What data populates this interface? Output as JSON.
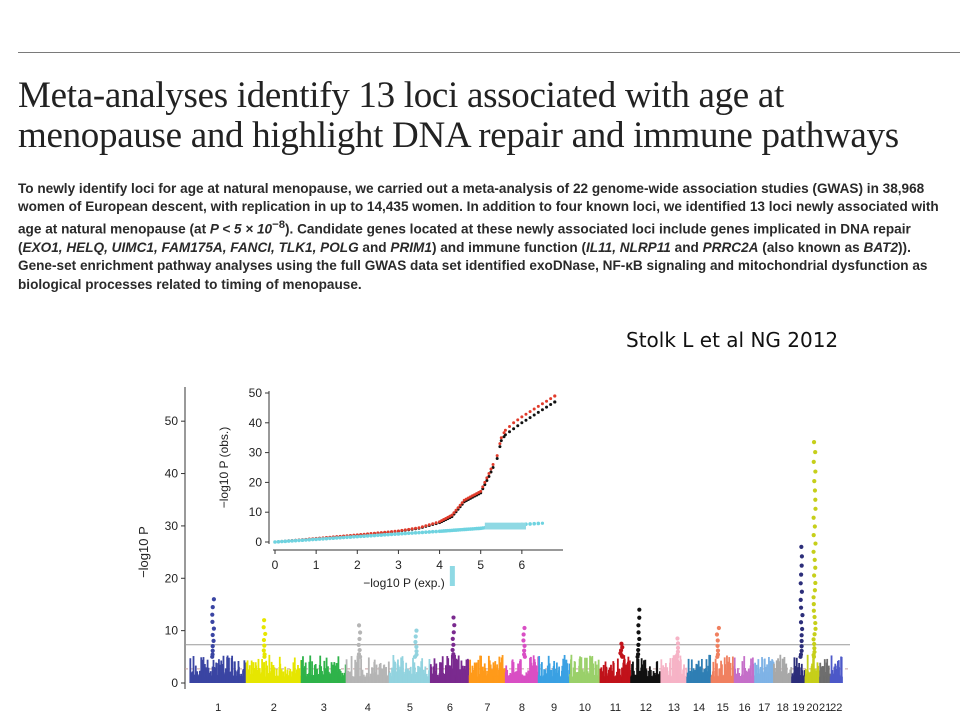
{
  "title": {
    "line1": "Meta-analyses identify 13 loci associated with age at",
    "line2": "menopause and highlight DNA repair and immune pathways"
  },
  "abstract": {
    "s1": "To newly identify loci for age at natural menopause, we carried out a meta-analysis of 22 genome-wide association studies (GWAS) in 38,968 women of European descent, with replication in up to 14,435 women. In addition to four known loci, we identified 13 loci newly associated with age at natural menopause (at ",
    "pthresh": "P < 5 × 10",
    "pexp": "−8",
    "s2": "). Candidate genes located at these newly associated loci include genes implicated in DNA repair (",
    "dna_genes": "EXO1, HELQ, UIMC1, FAM175A, FANCI, TLK1, POLG",
    "and1": " and ",
    "dna_gene_last": "PRIM1",
    "s3": ") and immune function (",
    "immune_genes": "IL11, NLRP11",
    "and2": " and ",
    "immune_gene_last": "PRRC2A",
    "s4": " (also known as ",
    "alias": "BAT2",
    "s5": ")). Gene-set enrichment pathway analyses using the full GWAS data set identified exoDNase, NF-κB signaling and mitochondrial dysfunction as biological processes related to timing of menopause."
  },
  "citation": "Stolk L et al NG 2012",
  "chart_data": [
    {
      "type": "scatter",
      "subtype": "manhattan",
      "ylabel": "−log10 P",
      "ylim": [
        0,
        55
      ],
      "yticks": [
        0,
        10,
        20,
        30,
        40,
        50
      ],
      "threshold_genomewide": 7.3,
      "threshold_suggestive": 2.7,
      "categories": [
        "1",
        "2",
        "3",
        "4",
        "5",
        "6",
        "7",
        "8",
        "9",
        "10",
        "11",
        "12",
        "13",
        "14",
        "15",
        "16",
        "17",
        "18",
        "19",
        "20",
        "21",
        "22"
      ],
      "chromosome_colors": [
        "#3a45a3",
        "#e6e600",
        "#2fb34a",
        "#b5b5b5",
        "#92d3df",
        "#7a2a8f",
        "#ff9a1a",
        "#d94fc4",
        "#3aa1e3",
        "#9ad06a",
        "#c1121a",
        "#111111",
        "#f6b3c6",
        "#2f7fb4",
        "#f08060",
        "#c56fc9",
        "#7fb3e6",
        "#a8a8a8",
        "#2c2e7a",
        "#c6cf1a",
        "#6e6e6e",
        "#4d59c9"
      ],
      "peaks": [
        {
          "chromosome": "1",
          "max": 16
        },
        {
          "chromosome": "2",
          "max": 12
        },
        {
          "chromosome": "4",
          "max": 11
        },
        {
          "chromosome": "5",
          "max": 10
        },
        {
          "chromosome": "6",
          "max": 12.5
        },
        {
          "chromosome": "8",
          "max": 10.5
        },
        {
          "chromosome": "11",
          "max": 7.5
        },
        {
          "chromosome": "12",
          "max": 14
        },
        {
          "chromosome": "13",
          "max": 8.5
        },
        {
          "chromosome": "15",
          "max": 10.5
        },
        {
          "chromosome": "19",
          "max": 26
        },
        {
          "chromosome": "20",
          "max": 46
        }
      ]
    },
    {
      "type": "scatter",
      "subtype": "qq",
      "xlabel": "−log10 P (exp.)",
      "ylabel": "−log10 P (obs.)",
      "xlim": [
        0,
        7
      ],
      "ylim": [
        0,
        50
      ],
      "xticks": [
        0,
        1,
        2,
        3,
        4,
        5,
        6
      ],
      "yticks": [
        0,
        10,
        20,
        30,
        40,
        50
      ],
      "series": [
        {
          "color": "#111111",
          "x": [
            0,
            1,
            2,
            3,
            3.5,
            4,
            4.3,
            4.6,
            4.8,
            5,
            5.2,
            5.4,
            5.5,
            5.6,
            5.8,
            6,
            6.8
          ],
          "y": [
            0,
            1.1,
            2.3,
            3.6,
            4.6,
            6.5,
            8.5,
            13.5,
            15,
            16.5,
            22,
            28,
            34,
            36,
            38,
            40,
            47
          ]
        },
        {
          "color": "#e03b2b",
          "x": [
            0,
            1,
            2,
            3,
            3.5,
            4,
            4.3,
            4.6,
            4.8,
            5,
            5.2,
            5.4,
            5.5,
            5.6,
            5.8,
            6,
            6.8
          ],
          "y": [
            0,
            1.2,
            2.4,
            3.7,
            4.8,
            6.8,
            9,
            14,
            15.5,
            17,
            23,
            29,
            35,
            37.5,
            40,
            42,
            49
          ]
        },
        {
          "color": "#6fd3e0",
          "x": [
            0,
            1,
            2,
            3,
            4,
            5,
            5.5,
            6.5
          ],
          "y": [
            0,
            0.9,
            1.8,
            2.7,
            3.6,
            4.6,
            5.5,
            6.3
          ]
        }
      ]
    }
  ]
}
